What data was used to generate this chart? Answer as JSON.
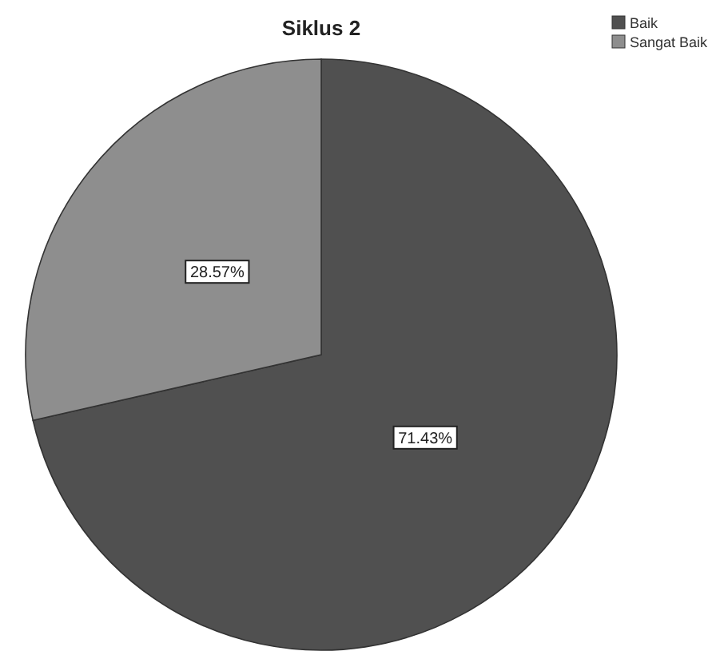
{
  "chart_data": {
    "type": "pie",
    "title": "Siklus 2",
    "categories": [
      "Baik",
      "Sangat Baik"
    ],
    "values": [
      71.43,
      28.57
    ],
    "value_labels": [
      "71.43%",
      "28.57%"
    ],
    "colors": [
      "#505050",
      "#8e8e8e"
    ],
    "legend": "top right"
  }
}
